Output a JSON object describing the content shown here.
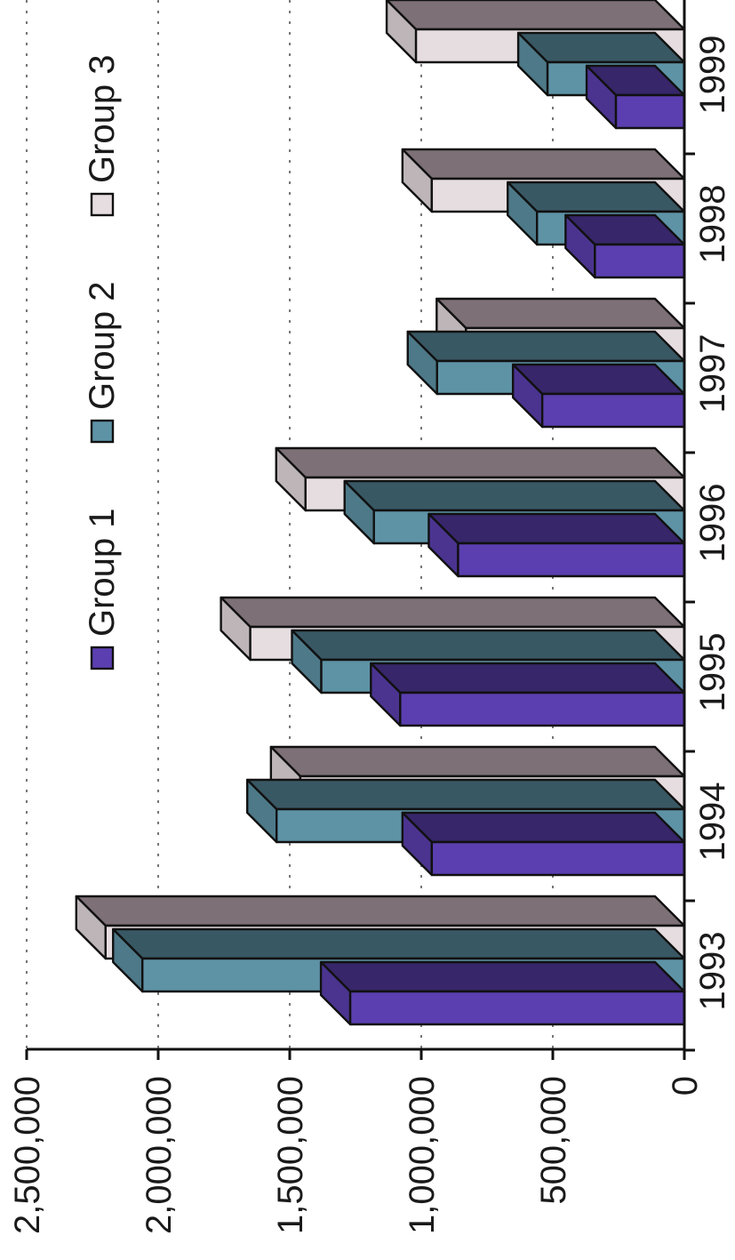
{
  "chart_data": {
    "type": "bar",
    "orientation": "rotated-90-clockwise",
    "three_d": true,
    "categories": [
      "1993",
      "1994",
      "1995",
      "1996",
      "1997",
      "1998",
      "1999"
    ],
    "series": [
      {
        "name": "Group 1",
        "color": "#5b3fb0",
        "values": [
          1270000,
          960000,
          1080000,
          860000,
          540000,
          340000,
          260000
        ]
      },
      {
        "name": "Group 2",
        "color": "#5e93a6",
        "values": [
          2060000,
          1550000,
          1380000,
          1180000,
          940000,
          560000,
          520000
        ]
      },
      {
        "name": "Group 3",
        "color": "#e6dde0",
        "values": [
          2200000,
          1460000,
          1650000,
          1440000,
          830000,
          960000,
          1020000
        ]
      }
    ],
    "ylim": [
      0,
      2500000
    ],
    "yticks": [
      "0",
      "500,000",
      "1,000,000",
      "1,500,000",
      "2,000,000",
      "2,500,000"
    ],
    "grid": true,
    "legend_position": "top",
    "top_color": "#7d7076",
    "title": "",
    "xlabel": "",
    "ylabel": ""
  }
}
